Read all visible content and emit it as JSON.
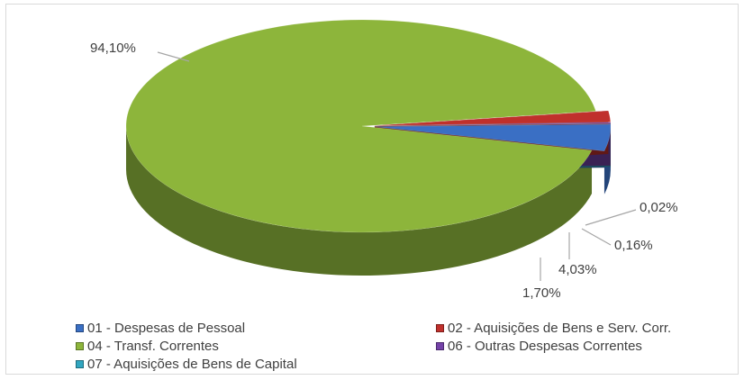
{
  "chart_data": {
    "type": "pie",
    "title": "",
    "style": "3d-exploded-oblique",
    "legend_position": "bottom",
    "slices": [
      {
        "name": "04 - Transf. Correntes",
        "value": 94.1,
        "label": "94,10%",
        "color": "#8DB53B"
      },
      {
        "name": "01 - Despesas de Pessoal",
        "value": 4.03,
        "label": "4,03%",
        "color": "#3A6FC4"
      },
      {
        "name": "07 - Aquisições de Bens de Capital",
        "value": 0.02,
        "label": "0,02%",
        "color": "#31A6C0"
      },
      {
        "name": "06 - Outras Despesas Correntes",
        "value": 0.16,
        "label": "0,16%",
        "color": "#7442A8"
      },
      {
        "name": "02 - Aquisições de Bens e Serv. Corr.",
        "value": 1.7,
        "label": "1,70%",
        "color": "#C0302C"
      }
    ],
    "legend": [
      {
        "label": "01 - Despesas de Pessoal",
        "color": "#3A6FC4"
      },
      {
        "label": "02 - Aquisições de Bens e Serv. Corr.",
        "color": "#C0302C"
      },
      {
        "label": "04 - Transf. Correntes",
        "color": "#8DB53B"
      },
      {
        "label": "06 - Outras Despesas Correntes",
        "color": "#7442A8"
      },
      {
        "label": "07 - Aquisições de Bens de Capital",
        "color": "#31A6C0"
      }
    ]
  }
}
